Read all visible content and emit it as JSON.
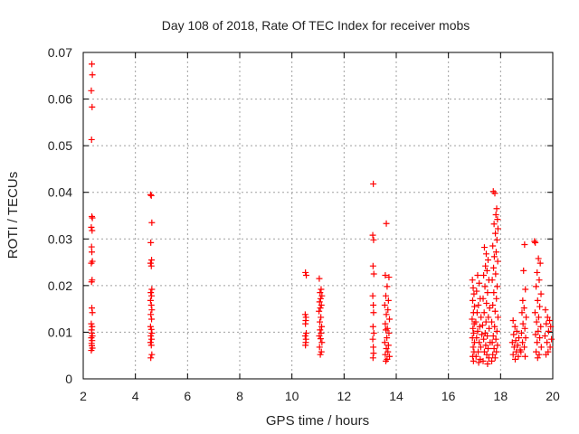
{
  "chart_data": {
    "type": "scatter",
    "title": "Day 108 of 2018, Rate Of TEC Index for receiver mobs",
    "xlabel": "GPS time / hours",
    "ylabel": "ROTI / TECUs",
    "xlim": [
      2,
      20
    ],
    "ylim": [
      0,
      0.07
    ],
    "x_ticks": [
      2,
      4,
      6,
      8,
      10,
      12,
      14,
      16,
      18,
      20
    ],
    "y_ticks": [
      0,
      0.01,
      0.02,
      0.03,
      0.04,
      0.05,
      0.06,
      0.07
    ],
    "grid": true,
    "marker": "+",
    "color": "#ff0000",
    "series": [
      {
        "name": "ROTI",
        "points": [
          [
            2.33,
            0.0675
          ],
          [
            2.35,
            0.0652
          ],
          [
            2.31,
            0.0618
          ],
          [
            2.34,
            0.0583
          ],
          [
            2.32,
            0.0513
          ],
          [
            2.33,
            0.0348
          ],
          [
            2.35,
            0.0345
          ],
          [
            2.31,
            0.0325
          ],
          [
            2.34,
            0.0318
          ],
          [
            2.32,
            0.0283
          ],
          [
            2.33,
            0.0272
          ],
          [
            2.35,
            0.0252
          ],
          [
            2.31,
            0.0248
          ],
          [
            2.34,
            0.0212
          ],
          [
            2.32,
            0.0208
          ],
          [
            2.33,
            0.0152
          ],
          [
            2.35,
            0.0142
          ],
          [
            2.31,
            0.0118
          ],
          [
            2.34,
            0.0112
          ],
          [
            2.32,
            0.0105
          ],
          [
            2.33,
            0.0098
          ],
          [
            2.35,
            0.0092
          ],
          [
            2.31,
            0.0088
          ],
          [
            2.34,
            0.0082
          ],
          [
            2.32,
            0.0076
          ],
          [
            2.33,
            0.0071
          ],
          [
            2.35,
            0.0066
          ],
          [
            2.31,
            0.0061
          ],
          [
            4.58,
            0.0395
          ],
          [
            4.61,
            0.0393
          ],
          [
            4.63,
            0.0335
          ],
          [
            4.59,
            0.0292
          ],
          [
            4.62,
            0.0255
          ],
          [
            4.58,
            0.0248
          ],
          [
            4.61,
            0.0242
          ],
          [
            4.63,
            0.0192
          ],
          [
            4.59,
            0.0185
          ],
          [
            4.62,
            0.0178
          ],
          [
            4.58,
            0.0168
          ],
          [
            4.61,
            0.0158
          ],
          [
            4.63,
            0.0148
          ],
          [
            4.59,
            0.0138
          ],
          [
            4.62,
            0.0128
          ],
          [
            4.58,
            0.0112
          ],
          [
            4.61,
            0.0106
          ],
          [
            4.63,
            0.0098
          ],
          [
            4.59,
            0.0092
          ],
          [
            4.62,
            0.0085
          ],
          [
            4.58,
            0.0078
          ],
          [
            4.61,
            0.0072
          ],
          [
            4.63,
            0.0052
          ],
          [
            4.59,
            0.0045
          ],
          [
            10.52,
            0.0228
          ],
          [
            10.55,
            0.0222
          ],
          [
            10.51,
            0.0138
          ],
          [
            10.54,
            0.0132
          ],
          [
            10.53,
            0.0125
          ],
          [
            10.52,
            0.0118
          ],
          [
            10.55,
            0.0098
          ],
          [
            10.51,
            0.0092
          ],
          [
            10.54,
            0.0085
          ],
          [
            10.53,
            0.0078
          ],
          [
            10.52,
            0.0072
          ],
          [
            11.05,
            0.0215
          ],
          [
            11.12,
            0.0192
          ],
          [
            11.08,
            0.0185
          ],
          [
            11.15,
            0.0178
          ],
          [
            11.1,
            0.0172
          ],
          [
            11.06,
            0.0165
          ],
          [
            11.13,
            0.0158
          ],
          [
            11.09,
            0.0152
          ],
          [
            11.04,
            0.0145
          ],
          [
            11.11,
            0.0132
          ],
          [
            11.07,
            0.0122
          ],
          [
            11.14,
            0.0112
          ],
          [
            11.08,
            0.0105
          ],
          [
            11.12,
            0.0098
          ],
          [
            11.05,
            0.0092
          ],
          [
            11.1,
            0.0086
          ],
          [
            11.15,
            0.0078
          ],
          [
            11.06,
            0.0068
          ],
          [
            11.13,
            0.0058
          ],
          [
            11.09,
            0.0052
          ],
          [
            13.12,
            0.0418
          ],
          [
            13.1,
            0.0308
          ],
          [
            13.13,
            0.0298
          ],
          [
            13.11,
            0.0242
          ],
          [
            13.14,
            0.0225
          ],
          [
            13.1,
            0.0178
          ],
          [
            13.12,
            0.0158
          ],
          [
            13.13,
            0.0142
          ],
          [
            13.11,
            0.0112
          ],
          [
            13.14,
            0.0098
          ],
          [
            13.1,
            0.0085
          ],
          [
            13.12,
            0.0068
          ],
          [
            13.13,
            0.0055
          ],
          [
            13.11,
            0.0045
          ],
          [
            13.62,
            0.0333
          ],
          [
            13.58,
            0.0222
          ],
          [
            13.72,
            0.0218
          ],
          [
            13.65,
            0.0198
          ],
          [
            13.6,
            0.0178
          ],
          [
            13.7,
            0.0168
          ],
          [
            13.56,
            0.0158
          ],
          [
            13.68,
            0.0148
          ],
          [
            13.62,
            0.0138
          ],
          [
            13.74,
            0.0128
          ],
          [
            13.58,
            0.0118
          ],
          [
            13.66,
            0.0108
          ],
          [
            13.6,
            0.0105
          ],
          [
            13.72,
            0.0098
          ],
          [
            13.64,
            0.0088
          ],
          [
            13.56,
            0.0078
          ],
          [
            13.7,
            0.0072
          ],
          [
            13.62,
            0.0065
          ],
          [
            13.68,
            0.0058
          ],
          [
            13.58,
            0.0052
          ],
          [
            13.74,
            0.0048
          ],
          [
            13.65,
            0.0042
          ],
          [
            13.6,
            0.0038
          ],
          [
            16.92,
            0.0212
          ],
          [
            16.95,
            0.0195
          ],
          [
            16.98,
            0.0182
          ],
          [
            16.93,
            0.0168
          ],
          [
            17.0,
            0.0155
          ],
          [
            16.96,
            0.0142
          ],
          [
            16.91,
            0.0128
          ],
          [
            16.99,
            0.0118
          ],
          [
            16.94,
            0.0108
          ],
          [
            16.97,
            0.0098
          ],
          [
            16.92,
            0.0088
          ],
          [
            17.0,
            0.0078
          ],
          [
            16.95,
            0.0068
          ],
          [
            16.98,
            0.0058
          ],
          [
            16.93,
            0.0048
          ],
          [
            16.96,
            0.0038
          ],
          [
            17.12,
            0.0222
          ],
          [
            17.18,
            0.0205
          ],
          [
            17.08,
            0.0188
          ],
          [
            17.22,
            0.0172
          ],
          [
            17.15,
            0.0158
          ],
          [
            17.1,
            0.0142
          ],
          [
            17.25,
            0.0132
          ],
          [
            17.05,
            0.0122
          ],
          [
            17.2,
            0.0112
          ],
          [
            17.12,
            0.0102
          ],
          [
            17.28,
            0.0095
          ],
          [
            17.08,
            0.0088
          ],
          [
            17.18,
            0.0078
          ],
          [
            17.24,
            0.0068
          ],
          [
            17.14,
            0.0058
          ],
          [
            17.06,
            0.0048
          ],
          [
            17.22,
            0.0042
          ],
          [
            17.16,
            0.0035
          ],
          [
            17.38,
            0.0282
          ],
          [
            17.45,
            0.0268
          ],
          [
            17.52,
            0.0255
          ],
          [
            17.42,
            0.0242
          ],
          [
            17.48,
            0.0232
          ],
          [
            17.35,
            0.0222
          ],
          [
            17.55,
            0.0212
          ],
          [
            17.4,
            0.0198
          ],
          [
            17.5,
            0.0185
          ],
          [
            17.33,
            0.0172
          ],
          [
            17.46,
            0.0162
          ],
          [
            17.58,
            0.0152
          ],
          [
            17.37,
            0.0142
          ],
          [
            17.53,
            0.0132
          ],
          [
            17.44,
            0.0122
          ],
          [
            17.31,
            0.0115
          ],
          [
            17.56,
            0.0108
          ],
          [
            17.41,
            0.0098
          ],
          [
            17.49,
            0.0092
          ],
          [
            17.35,
            0.0085
          ],
          [
            17.6,
            0.0078
          ],
          [
            17.43,
            0.0072
          ],
          [
            17.52,
            0.0065
          ],
          [
            17.38,
            0.0058
          ],
          [
            17.47,
            0.0052
          ],
          [
            17.55,
            0.0045
          ],
          [
            17.33,
            0.0038
          ],
          [
            17.5,
            0.0032
          ],
          [
            17.72,
            0.0402
          ],
          [
            17.78,
            0.0398
          ],
          [
            17.85,
            0.0365
          ],
          [
            17.82,
            0.0352
          ],
          [
            17.88,
            0.0342
          ],
          [
            17.75,
            0.0332
          ],
          [
            17.9,
            0.0322
          ],
          [
            17.8,
            0.0312
          ],
          [
            17.86,
            0.0298
          ],
          [
            17.7,
            0.0285
          ],
          [
            17.83,
            0.0272
          ],
          [
            17.76,
            0.0262
          ],
          [
            17.89,
            0.0252
          ],
          [
            17.73,
            0.0238
          ],
          [
            17.81,
            0.0225
          ],
          [
            17.68,
            0.0212
          ],
          [
            17.87,
            0.0198
          ],
          [
            17.74,
            0.0185
          ],
          [
            17.84,
            0.0172
          ],
          [
            17.7,
            0.0158
          ],
          [
            17.79,
            0.0145
          ],
          [
            17.9,
            0.0132
          ],
          [
            17.66,
            0.0122
          ],
          [
            17.77,
            0.0112
          ],
          [
            17.86,
            0.0102
          ],
          [
            17.72,
            0.0092
          ],
          [
            17.82,
            0.0085
          ],
          [
            17.68,
            0.0078
          ],
          [
            17.88,
            0.0072
          ],
          [
            17.75,
            0.0065
          ],
          [
            17.84,
            0.0058
          ],
          [
            17.7,
            0.0052
          ],
          [
            17.79,
            0.0045
          ],
          [
            17.66,
            0.0038
          ],
          [
            18.48,
            0.0125
          ],
          [
            18.55,
            0.0112
          ],
          [
            18.62,
            0.0102
          ],
          [
            18.5,
            0.0095
          ],
          [
            18.7,
            0.0088
          ],
          [
            18.58,
            0.0082
          ],
          [
            18.45,
            0.0078
          ],
          [
            18.66,
            0.0072
          ],
          [
            18.52,
            0.0068
          ],
          [
            18.75,
            0.0062
          ],
          [
            18.6,
            0.0058
          ],
          [
            18.48,
            0.0052
          ],
          [
            18.68,
            0.0048
          ],
          [
            18.56,
            0.0042
          ],
          [
            18.92,
            0.0288
          ],
          [
            18.88,
            0.0232
          ],
          [
            18.95,
            0.0192
          ],
          [
            18.85,
            0.0168
          ],
          [
            18.9,
            0.0152
          ],
          [
            18.82,
            0.0142
          ],
          [
            18.98,
            0.0132
          ],
          [
            18.86,
            0.0118
          ],
          [
            18.93,
            0.0108
          ],
          [
            18.8,
            0.0098
          ],
          [
            18.96,
            0.0088
          ],
          [
            18.84,
            0.0078
          ],
          [
            18.91,
            0.0068
          ],
          [
            18.78,
            0.0058
          ],
          [
            18.94,
            0.0048
          ],
          [
            19.3,
            0.0295
          ],
          [
            19.33,
            0.0292
          ],
          [
            19.45,
            0.0258
          ],
          [
            19.52,
            0.0248
          ],
          [
            19.4,
            0.0228
          ],
          [
            19.48,
            0.0212
          ],
          [
            19.36,
            0.0198
          ],
          [
            19.55,
            0.0182
          ],
          [
            19.42,
            0.0168
          ],
          [
            19.5,
            0.0155
          ],
          [
            19.32,
            0.0142
          ],
          [
            19.46,
            0.0132
          ],
          [
            19.38,
            0.0122
          ],
          [
            19.54,
            0.0112
          ],
          [
            19.44,
            0.0102
          ],
          [
            19.34,
            0.0095
          ],
          [
            19.5,
            0.0088
          ],
          [
            19.4,
            0.0078
          ],
          [
            19.56,
            0.0068
          ],
          [
            19.36,
            0.0058
          ],
          [
            19.48,
            0.0052
          ],
          [
            19.42,
            0.0045
          ],
          [
            19.72,
            0.0148
          ],
          [
            19.8,
            0.0132
          ],
          [
            19.88,
            0.0125
          ],
          [
            19.75,
            0.0118
          ],
          [
            19.92,
            0.0112
          ],
          [
            19.84,
            0.0102
          ],
          [
            19.7,
            0.0092
          ],
          [
            19.95,
            0.0085
          ],
          [
            19.78,
            0.0078
          ],
          [
            19.9,
            0.0068
          ],
          [
            19.82,
            0.0058
          ],
          [
            19.74,
            0.0052
          ]
        ]
      }
    ]
  }
}
